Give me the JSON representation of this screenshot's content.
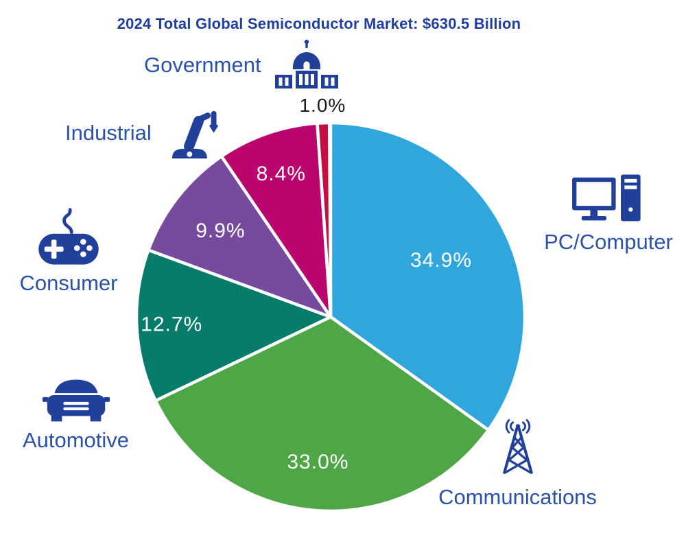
{
  "title": "2024 Total Global Semiconductor Market: $630.5 Billion",
  "chart_data": {
    "type": "pie",
    "title": "2024 Total Global Semiconductor Market: $630.5 Billion",
    "direction": "clockwise",
    "start_angle_deg": 0,
    "slices": [
      {
        "label": "PC/Computer",
        "value": 34.9,
        "display": "34.9%",
        "color": "#31A6DD",
        "pct_color": "#FFFFFF",
        "label_r": 0.64,
        "outside": false
      },
      {
        "label": "Communications",
        "value": 33.0,
        "display": "33.0%",
        "color": "#4FA646",
        "pct_color": "#FFFFFF",
        "label_r": 0.75,
        "outside": false
      },
      {
        "label": "Automotive",
        "value": 12.7,
        "display": "12.7%",
        "color": "#077C6B",
        "pct_color": "#FFFFFF",
        "label_r": 0.82,
        "outside": false
      },
      {
        "label": "Consumer",
        "value": 9.9,
        "display": "9.9%",
        "color": "#764A9C",
        "pct_color": "#FFFFFF",
        "label_r": 0.72,
        "outside": false
      },
      {
        "label": "Industrial",
        "value": 8.4,
        "display": "8.4%",
        "color": "#B9056D",
        "pct_color": "#FFFFFF",
        "label_r": 0.78,
        "outside": false
      },
      {
        "label": "Government",
        "value": 1.0,
        "display": "1.0%",
        "color": "#C40F45",
        "pct_color": "#1A1A1A",
        "label_r": 1.09,
        "outside": true
      }
    ],
    "colors": {
      "icon": "#21409A",
      "label_text": "#2A52A8",
      "title_text": "#1F3F9E",
      "slice_gap": "#FFFFFF"
    },
    "legend_position": "around-chart",
    "grid": false
  }
}
